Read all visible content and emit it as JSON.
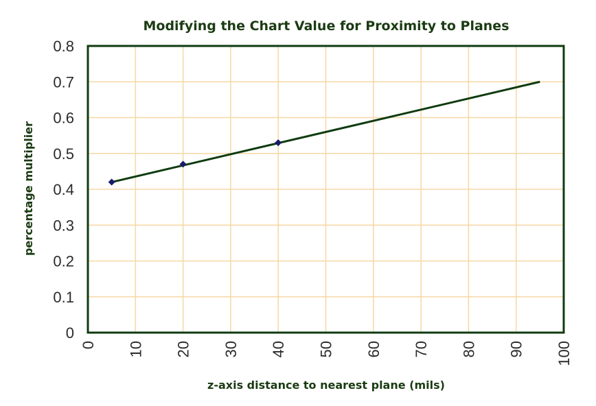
{
  "chart_data": {
    "type": "line",
    "title": "Modifying the Chart Value for Proximity to Planes",
    "xlabel": "z-axis distance to nearest plane (mils)",
    "ylabel": "percentage multiplier",
    "xlim": [
      0,
      100
    ],
    "ylim": [
      0,
      0.8
    ],
    "x_ticks": [
      "0",
      "10",
      "20",
      "30",
      "40",
      "50",
      "60",
      "70",
      "80",
      "90",
      "100"
    ],
    "y_ticks": [
      "0",
      "0.1",
      "0.2",
      "0.3",
      "0.4",
      "0.5",
      "0.6",
      "0.7",
      "0.8"
    ],
    "grid": true,
    "series": [
      {
        "points": [
          {
            "x": 5,
            "y": 0.42
          },
          {
            "x": 20,
            "y": 0.47
          },
          {
            "x": 40,
            "y": 0.53
          }
        ],
        "marker": "diamond",
        "marker_color": "#1a1a6e"
      }
    ],
    "trendline": {
      "type": "linear",
      "start": {
        "x": 5,
        "y": 0.42
      },
      "end": {
        "x": 95,
        "y": 0.7
      },
      "color": "#0f3b0f"
    },
    "colors": {
      "grid": "#f7d7a6",
      "frame": "#0f3b0f",
      "text": "#1a3b12"
    }
  }
}
